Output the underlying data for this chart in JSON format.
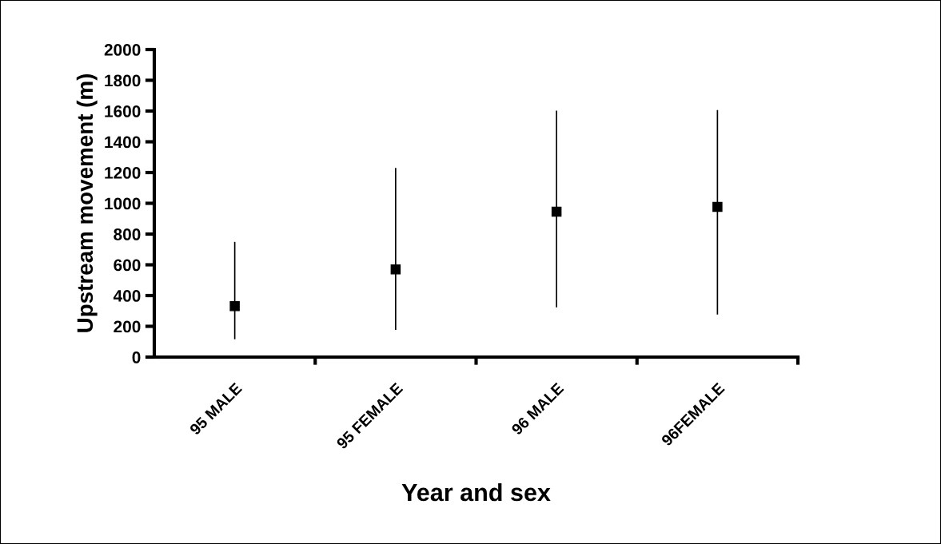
{
  "chart_data": {
    "type": "scatter",
    "xlabel": "Year and sex",
    "ylabel": "Upstream movement (m)",
    "categories": [
      "95 MALE",
      "95 FEMALE",
      "96 MALE",
      "96FEMALE"
    ],
    "values": [
      331,
      570,
      946,
      976
    ],
    "errors": [
      [
        116,
        749
      ],
      [
        177,
        1230
      ],
      [
        324,
        1603
      ],
      [
        276,
        1607
      ]
    ],
    "color": "#000000",
    "marker": "square",
    "ylim": [
      0,
      2000
    ],
    "yticks": [
      0,
      200,
      400,
      600,
      800,
      1000,
      1200,
      1400,
      1600,
      1800,
      2000
    ],
    "grid": false,
    "legend": false
  }
}
